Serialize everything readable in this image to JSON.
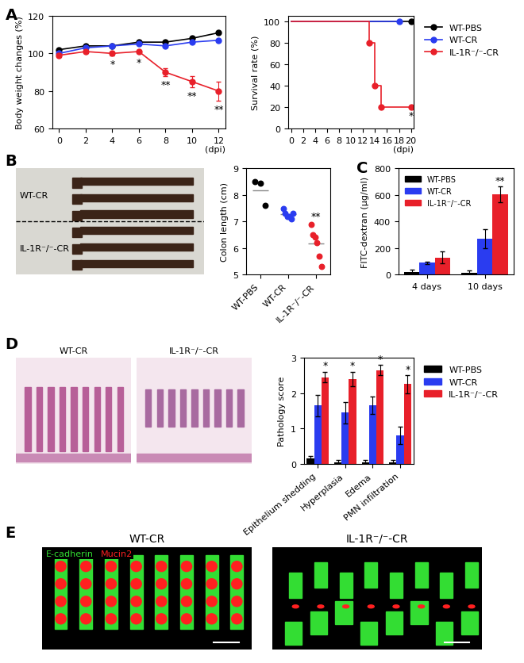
{
  "chart_data": [
    {
      "panel": "A",
      "type": "line",
      "y_label": "Body weight changes (%)",
      "x_label": "(dpi)",
      "x": [
        0,
        2,
        4,
        6,
        8,
        10,
        12
      ],
      "xlim": [
        -0.5,
        12.5
      ],
      "xticks": [
        0,
        2,
        4,
        6,
        8,
        10,
        12
      ],
      "ylim": [
        60,
        120
      ],
      "yticks": [
        60,
        80,
        100,
        120
      ],
      "series": [
        {
          "name": "WT-PBS",
          "color": "#000000",
          "marker": "circle",
          "values": [
            102,
            104,
            104,
            106,
            106,
            108,
            111
          ]
        },
        {
          "name": "WT-CR",
          "color": "#2a3cf0",
          "marker": "circle",
          "values": [
            100,
            103,
            104,
            105,
            104,
            106,
            107
          ]
        },
        {
          "name": "IL-1R⁻/⁻-CR",
          "color": "#e8202a",
          "marker": "circle",
          "values": [
            99,
            101,
            100,
            101,
            90,
            85,
            80
          ],
          "errors": [
            1,
            1,
            1,
            1,
            2,
            3,
            5
          ],
          "significance": [
            null,
            null,
            "*",
            "*",
            "**",
            "**",
            "**"
          ]
        }
      ]
    },
    {
      "type": "line",
      "y_label": "Survival rate (%)",
      "x_label": "(dpi)",
      "xlim": [
        -0.5,
        20.5
      ],
      "xticks": [
        0,
        2,
        4,
        6,
        8,
        10,
        12,
        14,
        16,
        18,
        20
      ],
      "ylim": [
        0,
        105
      ],
      "yticks": [
        0,
        20,
        40,
        60,
        80,
        100
      ],
      "legend": "upper left",
      "series": [
        {
          "name": "WT-PBS",
          "color": "#000000",
          "marker": "circle",
          "line_style": "steps",
          "x": [
            0,
            20
          ],
          "values": [
            100,
            100
          ]
        },
        {
          "name": "WT-CR",
          "color": "#2a3cf0",
          "marker": "circle",
          "line_style": "steps",
          "x": [
            0,
            18
          ],
          "values": [
            100,
            100
          ]
        },
        {
          "name": "IL-1R⁻/⁻-CR",
          "color": "#e8202a",
          "marker": "circle",
          "line_style": "steps",
          "x": [
            0,
            13,
            14,
            15,
            20
          ],
          "values": [
            100,
            80,
            40,
            20,
            20
          ],
          "significance": [
            null,
            null,
            null,
            null,
            "*"
          ]
        }
      ]
    },
    {
      "type": "scatter",
      "y_label": "Colon length (cm)",
      "categories": [
        "WT-PBS",
        "WT-CR",
        "IL-1R⁻/⁻-CR"
      ],
      "points": [
        [
          8.5,
          8.45,
          7.6
        ],
        [
          7.5,
          7.3,
          7.2,
          7.2,
          7.1,
          7.3
        ],
        [
          6.9,
          6.5,
          6.4,
          6.2,
          5.7,
          5.3
        ]
      ],
      "means": [
        8.18,
        7.27,
        6.17
      ],
      "colors": [
        "#000000",
        "#2a3cf0",
        "#e8202a"
      ],
      "significance": [
        null,
        null,
        "**"
      ],
      "ylim": [
        5,
        9
      ],
      "yticks": [
        5,
        6,
        7,
        8,
        9
      ]
    },
    {
      "panel": "C",
      "type": "bar",
      "y_label": "FITC-dextran (µg/ml)",
      "categories": [
        "4 days",
        "10 days"
      ],
      "ylim": [
        0,
        800
      ],
      "yticks": [
        0,
        200,
        400,
        600,
        800
      ],
      "legend": "upper left",
      "series": [
        {
          "name": "WT-PBS",
          "color": "#000000",
          "values": [
            20,
            15
          ],
          "errors": [
            15,
            15
          ]
        },
        {
          "name": "WT-CR",
          "color": "#2a3cf0",
          "values": [
            90,
            270
          ],
          "errors": [
            10,
            70
          ]
        },
        {
          "name": "IL-1R⁻/⁻-CR",
          "color": "#e8202a",
          "values": [
            130,
            605
          ],
          "errors": [
            45,
            60
          ],
          "significance": [
            null,
            "**"
          ]
        }
      ]
    },
    {
      "type": "bar",
      "y_label": "Pathology score",
      "categories": [
        "Epithelium shedding",
        "Hyperplasia",
        "Edema",
        "PMN infiltration"
      ],
      "ylim": [
        0,
        3
      ],
      "yticks": [
        0,
        1,
        2,
        3
      ],
      "legend": "upper left",
      "series": [
        {
          "name": "WT-PBS",
          "color": "#000000",
          "values": [
            0.15,
            0.05,
            0.05,
            0.05
          ],
          "errors": [
            0.08,
            0.05,
            0.05,
            0.05
          ]
        },
        {
          "name": "WT-CR",
          "color": "#2a3cf0",
          "values": [
            1.65,
            1.45,
            1.65,
            0.8
          ],
          "errors": [
            0.3,
            0.3,
            0.25,
            0.25
          ]
        },
        {
          "name": "IL-1R⁻/⁻-CR",
          "color": "#e8202a",
          "values": [
            2.45,
            2.4,
            2.65,
            2.25
          ],
          "errors": [
            0.15,
            0.2,
            0.15,
            0.25
          ],
          "significance": [
            "*",
            "*",
            "*",
            "*"
          ]
        }
      ]
    }
  ],
  "images": [
    {
      "panel": "B",
      "labels": [
        "WT-CR",
        "IL-1R⁻/⁻-CR"
      ]
    },
    {
      "panel": "D",
      "titles": [
        "WT-CR",
        "IL-1R⁻/⁻-CR"
      ]
    },
    {
      "panel": "E",
      "titles": [
        "WT-CR",
        "IL-1R⁻/⁻-CR"
      ],
      "channels": [
        {
          "name": "E-cadherin",
          "color": "#33dd33"
        },
        {
          "name": "Mucin2",
          "color": "#ff2020"
        }
      ]
    }
  ]
}
